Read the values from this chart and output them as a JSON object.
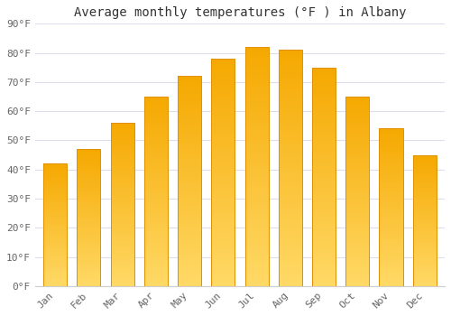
{
  "title": "Average monthly temperatures (°F ) in Albany",
  "months": [
    "Jan",
    "Feb",
    "Mar",
    "Apr",
    "May",
    "Jun",
    "Jul",
    "Aug",
    "Sep",
    "Oct",
    "Nov",
    "Dec"
  ],
  "values": [
    42,
    47,
    56,
    65,
    72,
    78,
    82,
    81,
    75,
    65,
    54,
    45
  ],
  "color_bottom": "#FFD966",
  "color_top": "#F5A800",
  "color_edge": "#E09000",
  "ylim": [
    0,
    90
  ],
  "yticks": [
    0,
    10,
    20,
    30,
    40,
    50,
    60,
    70,
    80,
    90
  ],
  "ytick_labels": [
    "0°F",
    "10°F",
    "20°F",
    "30°F",
    "40°F",
    "50°F",
    "60°F",
    "70°F",
    "80°F",
    "90°F"
  ],
  "background_color": "#ffffff",
  "grid_color": "#ddddee",
  "title_fontsize": 10,
  "tick_fontsize": 8,
  "bar_width": 0.7
}
